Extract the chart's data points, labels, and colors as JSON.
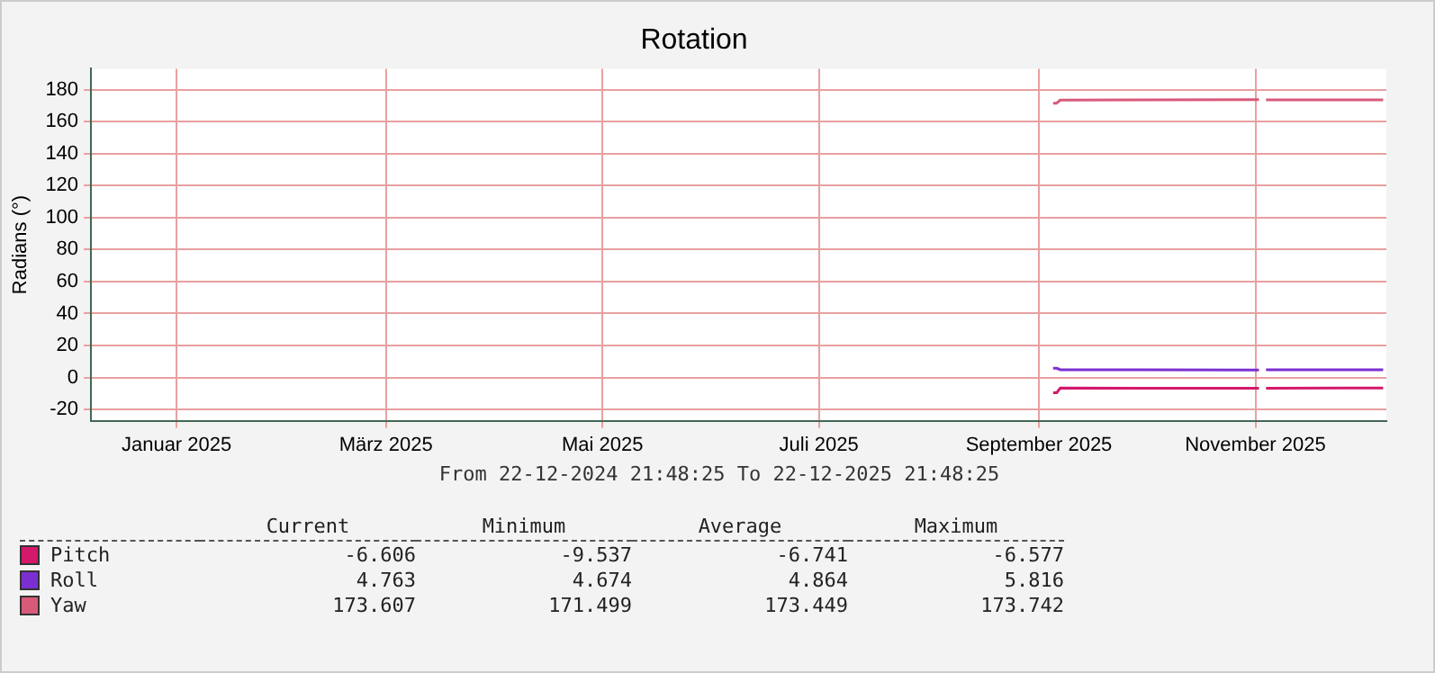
{
  "chart_data": {
    "type": "line",
    "title": "Rotation",
    "ylabel": "Radians (°)",
    "xlim": [
      "2024-12-22T21:48",
      "2025-12-22T21:48"
    ],
    "xticks": [
      {
        "value": "2025-01-16",
        "label": "Januar 2025"
      },
      {
        "value": "2025-03-16",
        "label": "März 2025"
      },
      {
        "value": "2025-05-16",
        "label": "Mai 2025"
      },
      {
        "value": "2025-07-16",
        "label": "Juli 2025"
      },
      {
        "value": "2025-09-16",
        "label": "September 2025"
      },
      {
        "value": "2025-11-16",
        "label": "November 2025"
      }
    ],
    "ylim": [
      -27,
      193
    ],
    "yticks": [
      -20,
      0,
      20,
      40,
      60,
      80,
      100,
      120,
      140,
      160,
      180
    ],
    "x": [
      "2025-09-20",
      "2025-09-21",
      "2025-09-22",
      "2025-10-15",
      "2025-11-17",
      "2025-11-18",
      "2025-11-19",
      "2025-12-10",
      "2025-12-22"
    ],
    "series": [
      {
        "name": "Pitch",
        "color": "#d4186c",
        "values": [
          -9.537,
          -9.537,
          -6.577,
          -6.741,
          -6.7,
          null,
          -6.65,
          -6.6,
          -6.606
        ]
      },
      {
        "name": "Roll",
        "color": "#7b2fd1",
        "values": [
          5.816,
          5.816,
          4.9,
          4.85,
          4.674,
          null,
          4.8,
          4.78,
          4.763
        ]
      },
      {
        "name": "Yaw",
        "color": "#d85a7a",
        "values": [
          171.499,
          171.499,
          173.4,
          173.5,
          173.742,
          null,
          173.6,
          173.6,
          173.607
        ]
      }
    ],
    "grid": true,
    "legend": "bottom",
    "marker": "none",
    "line_style": "solid",
    "annotations": [
      "From 22-12-2024 21:48:25 To 22-12-2025 21:48:25",
      "Current",
      "Minimum",
      "Average",
      "Maximum",
      "-6.606",
      "-9.537",
      "-6.741",
      "-6.577",
      "4.763",
      "4.674",
      "4.864",
      "5.816",
      "173.607",
      "171.499",
      "173.449",
      "173.742"
    ]
  }
}
